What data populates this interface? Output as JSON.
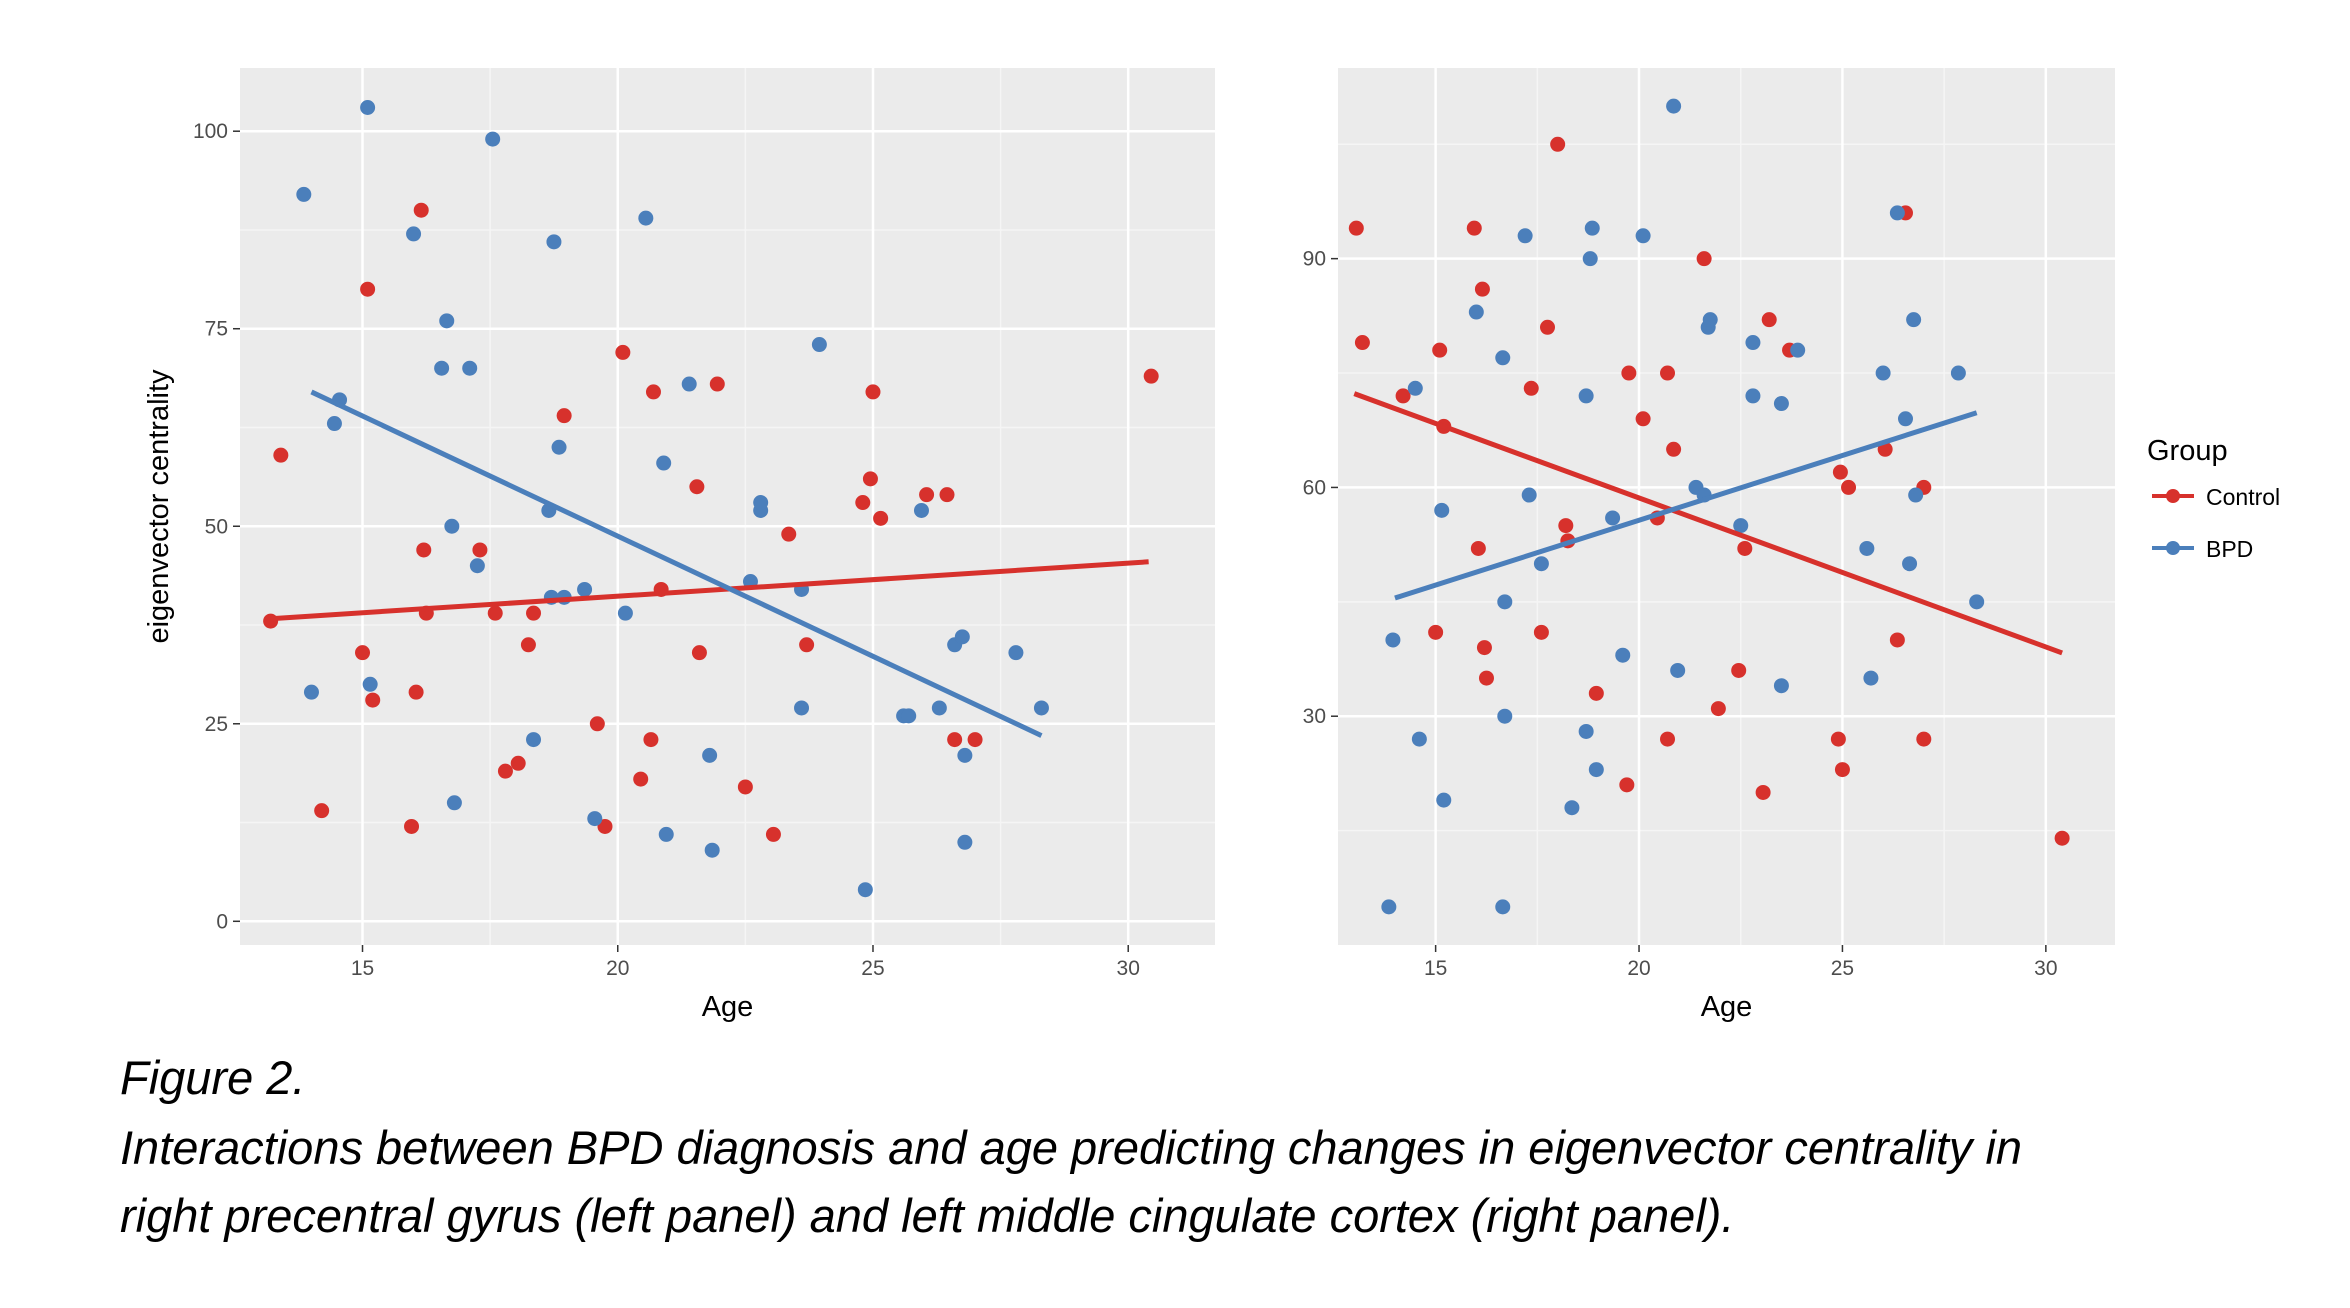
{
  "colors": {
    "control": "#d7312c",
    "bpd": "#4b7fbb",
    "panel_bg": "#ebebeb",
    "grid_major": "#ffffff"
  },
  "legend": {
    "title": "Group",
    "items": [
      "Control",
      "BPD"
    ]
  },
  "caption": {
    "title": "Figure 2.",
    "line1": "Interactions between BPD diagnosis and age predicting changes in eigenvector centrality in",
    "line2": "right precentral gyrus (left panel) and left middle cingulate cortex (right panel)."
  },
  "chart_data": [
    {
      "type": "scatter",
      "title": "",
      "xlabel": "Age",
      "ylabel": "eigenvector centrality",
      "xlim": [
        12.6,
        31.7
      ],
      "ylim": [
        -3,
        108
      ],
      "xticks": [
        15,
        20,
        25,
        30
      ],
      "yticks": [
        0,
        25,
        50,
        75,
        100
      ],
      "grid": true,
      "series": [
        {
          "name": "Control",
          "color": "#d7312c",
          "points": [
            [
              13.2,
              38
            ],
            [
              13.4,
              59
            ],
            [
              14.2,
              14
            ],
            [
              15.0,
              34
            ],
            [
              15.1,
              80
            ],
            [
              15.2,
              28
            ],
            [
              15.96,
              12
            ],
            [
              16.05,
              29
            ],
            [
              16.15,
              90
            ],
            [
              16.2,
              47
            ],
            [
              16.25,
              39
            ],
            [
              17.3,
              47
            ],
            [
              17.6,
              39
            ],
            [
              17.8,
              19
            ],
            [
              18.05,
              20
            ],
            [
              18.25,
              35
            ],
            [
              18.35,
              39
            ],
            [
              18.95,
              64
            ],
            [
              19.6,
              25
            ],
            [
              19.75,
              12
            ],
            [
              20.1,
              72
            ],
            [
              20.45,
              18
            ],
            [
              20.65,
              23
            ],
            [
              20.7,
              67
            ],
            [
              20.85,
              42
            ],
            [
              21.55,
              55
            ],
            [
              21.6,
              34
            ],
            [
              21.95,
              68
            ],
            [
              22.5,
              17
            ],
            [
              23.05,
              11
            ],
            [
              23.35,
              49
            ],
            [
              23.7,
              35
            ],
            [
              24.8,
              53
            ],
            [
              24.95,
              56
            ],
            [
              25.0,
              67
            ],
            [
              25.15,
              51
            ],
            [
              26.05,
              54
            ],
            [
              26.45,
              54
            ],
            [
              26.6,
              23
            ],
            [
              27.0,
              23
            ],
            [
              30.45,
              69
            ]
          ],
          "trend": [
            [
              13.2,
              38.3
            ],
            [
              30.4,
              45.5
            ]
          ]
        },
        {
          "name": "BPD",
          "color": "#4b7fbb",
          "points": [
            [
              13.85,
              92
            ],
            [
              14.0,
              29
            ],
            [
              14.45,
              63
            ],
            [
              14.55,
              66
            ],
            [
              15.1,
              103
            ],
            [
              15.15,
              30
            ],
            [
              16.0,
              87
            ],
            [
              16.55,
              70
            ],
            [
              16.65,
              76
            ],
            [
              16.75,
              50
            ],
            [
              16.8,
              15
            ],
            [
              17.1,
              70
            ],
            [
              17.25,
              45
            ],
            [
              17.55,
              99
            ],
            [
              18.35,
              23
            ],
            [
              18.65,
              52
            ],
            [
              18.7,
              41
            ],
            [
              18.75,
              86
            ],
            [
              18.85,
              60
            ],
            [
              18.95,
              41
            ],
            [
              19.35,
              42
            ],
            [
              19.55,
              13
            ],
            [
              20.15,
              39
            ],
            [
              20.55,
              89
            ],
            [
              20.9,
              58
            ],
            [
              20.95,
              11
            ],
            [
              21.4,
              68
            ],
            [
              21.8,
              21
            ],
            [
              21.85,
              9
            ],
            [
              22.6,
              43
            ],
            [
              22.8,
              52
            ],
            [
              22.8,
              53
            ],
            [
              23.6,
              42
            ],
            [
              23.6,
              27
            ],
            [
              23.95,
              73
            ],
            [
              24.85,
              4
            ],
            [
              25.6,
              26
            ],
            [
              25.7,
              26
            ],
            [
              25.95,
              52
            ],
            [
              26.3,
              27
            ],
            [
              26.6,
              35
            ],
            [
              26.75,
              36
            ],
            [
              26.8,
              21
            ],
            [
              26.8,
              10
            ],
            [
              27.8,
              34
            ],
            [
              28.3,
              27
            ]
          ],
          "trend": [
            [
              14.0,
              67
            ],
            [
              28.3,
              23.5
            ]
          ]
        }
      ]
    },
    {
      "type": "scatter",
      "title": "",
      "xlabel": "Age",
      "ylabel": "",
      "xlim": [
        12.6,
        31.7
      ],
      "ylim": [
        0,
        115
      ],
      "xticks": [
        15,
        20,
        25,
        30
      ],
      "yticks": [
        30,
        60,
        90
      ],
      "grid": true,
      "series": [
        {
          "name": "Control",
          "color": "#d7312c",
          "points": [
            [
              13.05,
              94
            ],
            [
              13.2,
              79
            ],
            [
              14.2,
              72
            ],
            [
              15.0,
              41
            ],
            [
              15.1,
              78
            ],
            [
              15.2,
              68
            ],
            [
              15.95,
              94
            ],
            [
              16.05,
              52
            ],
            [
              16.15,
              86
            ],
            [
              16.2,
              39
            ],
            [
              16.25,
              35
            ],
            [
              17.35,
              73
            ],
            [
              17.6,
              41
            ],
            [
              17.75,
              81
            ],
            [
              18.0,
              105
            ],
            [
              18.2,
              55
            ],
            [
              18.25,
              53
            ],
            [
              18.95,
              33
            ],
            [
              19.7,
              21
            ],
            [
              19.75,
              75
            ],
            [
              20.1,
              69
            ],
            [
              20.45,
              56
            ],
            [
              20.7,
              27
            ],
            [
              20.7,
              75
            ],
            [
              20.85,
              65
            ],
            [
              21.6,
              90
            ],
            [
              21.95,
              31
            ],
            [
              22.45,
              36
            ],
            [
              22.6,
              52
            ],
            [
              23.05,
              20
            ],
            [
              23.2,
              82
            ],
            [
              23.7,
              78
            ],
            [
              24.9,
              27
            ],
            [
              24.95,
              62
            ],
            [
              25.0,
              23
            ],
            [
              25.15,
              60
            ],
            [
              26.05,
              65
            ],
            [
              26.35,
              40
            ],
            [
              26.55,
              96
            ],
            [
              27.0,
              27
            ],
            [
              27.0,
              60
            ],
            [
              30.4,
              14
            ]
          ],
          "trend": [
            [
              13.0,
              72.3
            ],
            [
              30.4,
              38.3
            ]
          ]
        },
        {
          "name": "BPD",
          "color": "#4b7fbb",
          "points": [
            [
              13.85,
              5
            ],
            [
              13.95,
              40
            ],
            [
              14.5,
              73
            ],
            [
              14.6,
              27
            ],
            [
              15.15,
              57
            ],
            [
              15.2,
              19
            ],
            [
              16.0,
              83
            ],
            [
              16.65,
              77
            ],
            [
              16.7,
              45
            ],
            [
              16.7,
              30
            ],
            [
              16.65,
              5
            ],
            [
              17.2,
              93
            ],
            [
              17.3,
              59
            ],
            [
              17.6,
              50
            ],
            [
              18.35,
              18
            ],
            [
              18.7,
              72
            ],
            [
              18.7,
              28
            ],
            [
              18.8,
              90
            ],
            [
              18.85,
              94
            ],
            [
              18.95,
              23
            ],
            [
              19.35,
              56
            ],
            [
              19.6,
              38
            ],
            [
              20.1,
              93
            ],
            [
              20.85,
              110
            ],
            [
              20.95,
              36
            ],
            [
              21.4,
              60
            ],
            [
              21.6,
              59
            ],
            [
              21.7,
              81
            ],
            [
              21.75,
              82
            ],
            [
              22.5,
              55
            ],
            [
              22.8,
              79
            ],
            [
              22.8,
              72
            ],
            [
              23.5,
              34
            ],
            [
              23.5,
              71
            ],
            [
              23.9,
              78
            ],
            [
              25.6,
              52
            ],
            [
              25.7,
              35
            ],
            [
              26.0,
              75
            ],
            [
              26.35,
              96
            ],
            [
              26.55,
              69
            ],
            [
              26.65,
              50
            ],
            [
              26.75,
              82
            ],
            [
              26.8,
              59
            ],
            [
              27.85,
              75
            ],
            [
              28.3,
              45
            ]
          ],
          "trend": [
            [
              14.0,
              45.5
            ],
            [
              28.3,
              69.8
            ]
          ]
        }
      ]
    }
  ]
}
